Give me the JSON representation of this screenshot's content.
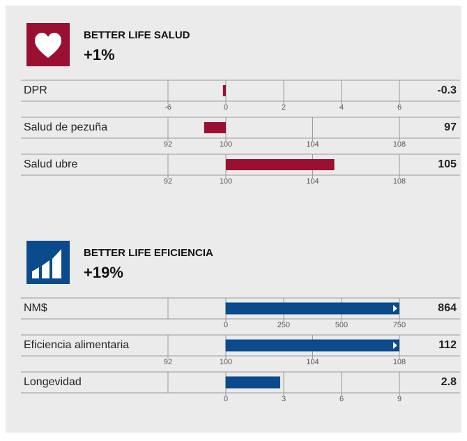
{
  "sections": [
    {
      "title": "BETTER LIFE SALUD",
      "change": "+1%",
      "color": "#9b0f33",
      "icon": "heart",
      "rows": [
        {
          "type": "bar",
          "label": "DPR",
          "value": -0.3,
          "baseline": 0,
          "xlim": [
            -6,
            6
          ],
          "xticks": [
            -6,
            0,
            2,
            4,
            6
          ]
        },
        {
          "type": "bar",
          "label": "Salud de pezuña",
          "value": 97,
          "baseline": 100,
          "xlim": [
            92,
            108
          ],
          "xticks": [
            92,
            100,
            104,
            108
          ]
        },
        {
          "type": "bar",
          "label": "Salud ubre",
          "value": 105,
          "baseline": 100,
          "xlim": [
            92,
            108
          ],
          "xticks": [
            92,
            100,
            104,
            108
          ]
        }
      ]
    },
    {
      "title": "BETTER LIFE EFICIENCIA",
      "change": "+19%",
      "color": "#0b4a8c",
      "icon": "bars",
      "rows": [
        {
          "type": "bar",
          "label": "NM$",
          "value": 864,
          "baseline": 0,
          "xlim": [
            0,
            750
          ],
          "xticks": [
            0,
            250,
            500,
            750
          ]
        },
        {
          "type": "bar",
          "label": "Eficiencia alimentaria",
          "value": 112,
          "baseline": 100,
          "xlim": [
            92,
            108
          ],
          "xticks": [
            92,
            100,
            104,
            108
          ]
        },
        {
          "type": "bar",
          "label": "Longevidad",
          "value": 2.8,
          "baseline": 0,
          "xlim": [
            0,
            9
          ],
          "xticks": [
            0,
            3,
            6,
            9
          ]
        }
      ]
    }
  ]
}
